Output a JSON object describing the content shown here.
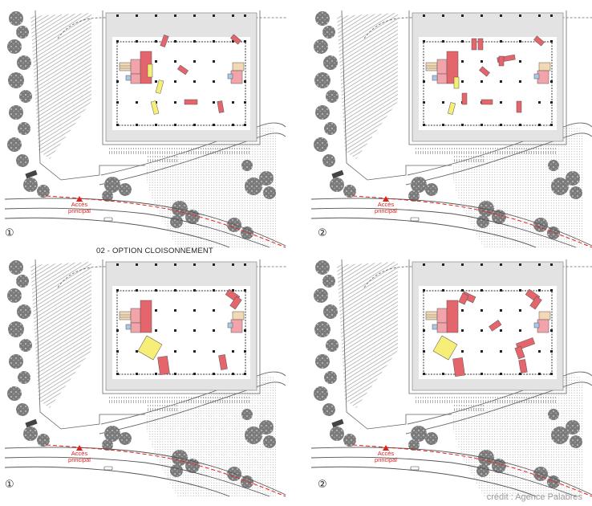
{
  "section_title": "02 - OPTION CLOISONNEMENT",
  "credit": "crédit : Agence Palabres",
  "access_label_line1": "Accès",
  "access_label_line2": "principal",
  "panels": [
    {
      "id": "top-left",
      "variant_label": "①",
      "scheme": "A"
    },
    {
      "id": "top-right",
      "variant_label": "②",
      "scheme": "B"
    },
    {
      "id": "bottom-left",
      "variant_label": "①",
      "scheme": "C"
    },
    {
      "id": "bottom-right",
      "variant_label": "②",
      "scheme": "D"
    }
  ],
  "colors": {
    "red_block": "#e5656d",
    "pink_block": "#f3a4ab",
    "yellow_block": "#f7ee77",
    "beige_block": "#f2d8b4",
    "blue_block": "#a9c8e6",
    "gray_band": "#e3e3e3",
    "access_red": "#e0201b",
    "tree": "#7d7d7d"
  }
}
